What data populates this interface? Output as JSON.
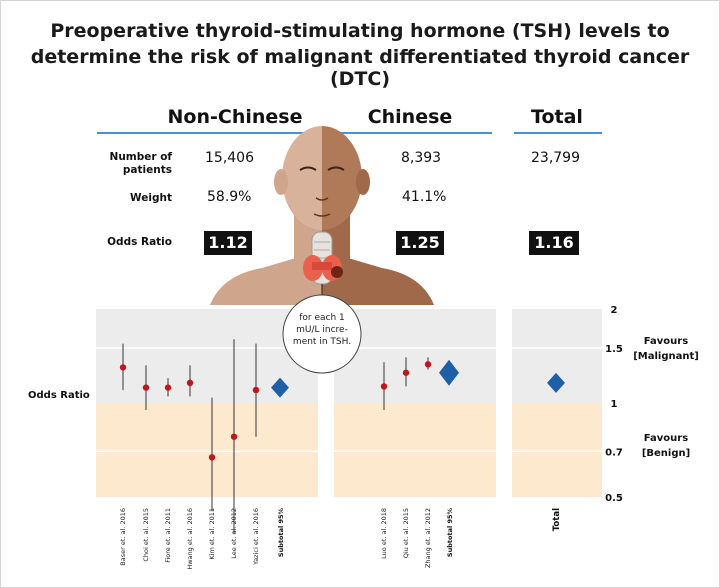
{
  "title_line1": "Preoperative thyroid-stimulating hormone (TSH) levels to",
  "title_line2": "determine the risk of malignant differentiated thyroid cancer (DTC)",
  "columns": {
    "non_chinese": {
      "header": "Non-Chinese",
      "patients": "15,406",
      "weight": "58.9%",
      "odds_ratio": "1.12"
    },
    "chinese": {
      "header": "Chinese",
      "patients": "8,393",
      "weight": "41.1%",
      "odds_ratio": "1.25"
    },
    "total": {
      "header": "Total",
      "patients": "23,799",
      "odds_ratio": "1.16"
    }
  },
  "row_labels": {
    "patients": "Number of patients",
    "weight": "Weight",
    "odds_ratio": "Odds Ratio"
  },
  "bubble_text": "for each 1 mU/L incre-ment in TSH.",
  "colors": {
    "malignant_band": "#ececec",
    "benign_band": "#fde9cd",
    "point": "#c0171c",
    "diamond": "#1f5fa8",
    "accent_line": "#4a90d9"
  },
  "chart_data": {
    "type": "forest",
    "ylabel": "Odds Ratio",
    "y_scale": "log",
    "ylim": [
      0.5,
      2
    ],
    "yticks": [
      0.5,
      0.7,
      1,
      1.5,
      2
    ],
    "ytick_labels": [
      "0.5",
      "0.7",
      "1",
      "1.5",
      "2"
    ],
    "reference_line": 1,
    "favours": [
      {
        "label": "Favours [Malignant]",
        "region": "above 1"
      },
      {
        "label": "Favours [Benign]",
        "region": "below 1"
      }
    ],
    "panels": [
      {
        "name": "Non-Chinese",
        "studies": [
          {
            "label": "Baser et. al. 2016",
            "or": 1.3,
            "ci": [
              1.1,
              1.55
            ]
          },
          {
            "label": "Choi et. al. 2015",
            "or": 1.12,
            "ci": [
              0.95,
              1.32
            ]
          },
          {
            "label": "Fiore et. al. 2011",
            "or": 1.12,
            "ci": [
              1.05,
              1.2
            ]
          },
          {
            "label": "Hwang et. al. 2016",
            "or": 1.16,
            "ci": [
              1.05,
              1.32
            ]
          },
          {
            "label": "Kim et. al. 2011",
            "or": 0.67,
            "ci": [
              0.45,
              1.04
            ]
          },
          {
            "label": "Lee et. al. 2012",
            "or": 0.78,
            "ci": [
              0.38,
              1.6
            ]
          },
          {
            "label": "Yazici et. al. 2016",
            "or": 1.1,
            "ci": [
              0.78,
              1.55
            ]
          }
        ],
        "subtotal": {
          "label": "Subtotal 95%",
          "or": 1.12
        }
      },
      {
        "name": "Chinese",
        "studies": [
          {
            "label": "Luo et. al. 2018",
            "or": 1.13,
            "ci": [
              0.95,
              1.35
            ]
          },
          {
            "label": "Qiu et. al. 2015",
            "or": 1.25,
            "ci": [
              1.13,
              1.4
            ]
          },
          {
            "label": "Zhang et. al. 2012",
            "or": 1.33,
            "ci": [
              1.28,
              1.4
            ]
          }
        ],
        "subtotal": {
          "label": "Subtotal 95%",
          "or": 1.25
        }
      },
      {
        "name": "Total",
        "studies": [],
        "subtotal": {
          "label": "Total",
          "or": 1.16
        }
      }
    ]
  }
}
